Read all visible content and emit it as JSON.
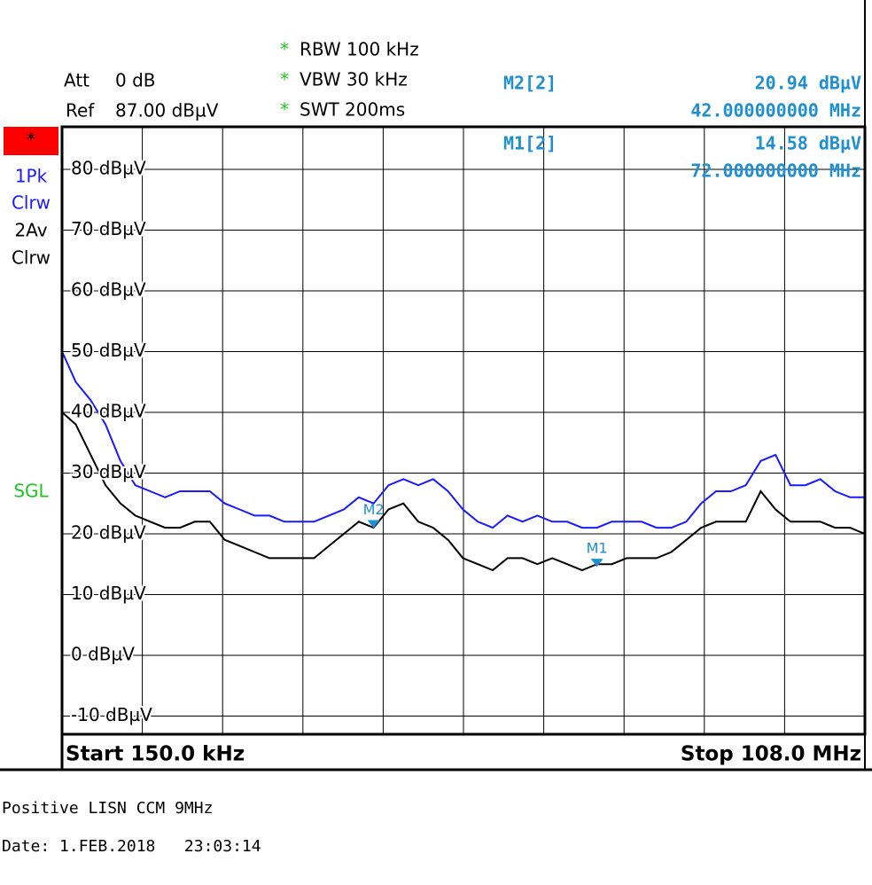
{
  "chart_data": {
    "type": "line",
    "header": {
      "att_label": "Att",
      "att": "0 dB",
      "ref_label": "Ref",
      "ref": "87.00 dBµV",
      "settings": [
        {
          "star": "*",
          "text": "RBW 100 kHz"
        },
        {
          "star": "*",
          "text": "VBW 30 kHz"
        },
        {
          "star": "*",
          "text": "SWT 200ms"
        }
      ]
    },
    "side_labels": {
      "flag": "*",
      "trace1": [
        "1Pk",
        "Clrw"
      ],
      "trace2": [
        "2Av",
        "Clrw"
      ],
      "mode": "SGL"
    },
    "markers": [
      {
        "name": "M2[2]",
        "label": "M2",
        "level": "20.94 dBµV",
        "freq": "42.000000000 MHz",
        "x": 42,
        "y": 20.94,
        "color": "#1e8fd0"
      },
      {
        "name": "M1[2]",
        "label": "M1",
        "level": "14.58 dBµV",
        "freq": "72.000000000 MHz",
        "x": 72,
        "y": 14.58,
        "color": "#1e8fd0"
      }
    ],
    "start_label": "Start 150.0 kHz",
    "stop_label": "Stop 108.0 MHz",
    "xlim": [
      0.15,
      108
    ],
    "ylim": [
      -13,
      87
    ],
    "yticks": [
      {
        "value": 80,
        "label": "80 dBµV"
      },
      {
        "value": 70,
        "label": "70 dBµV"
      },
      {
        "value": 60,
        "label": "60 dBµV"
      },
      {
        "value": 50,
        "label": "50 dBµV"
      },
      {
        "value": 40,
        "label": "40 dBµV"
      },
      {
        "value": 30,
        "label": "30 dBµV"
      },
      {
        "value": 20,
        "label": "20 dBµV"
      },
      {
        "value": 10,
        "label": "10 dBµV"
      },
      {
        "value": 0,
        "label": "0 dBµV"
      },
      {
        "value": -10,
        "label": "-10 dBµV"
      }
    ],
    "grid": true,
    "x": [
      0.15,
      2,
      4,
      6,
      8,
      10,
      12,
      14,
      16,
      18,
      20,
      22,
      24,
      26,
      28,
      30,
      32,
      34,
      36,
      38,
      40,
      42,
      44,
      46,
      48,
      50,
      52,
      54,
      56,
      58,
      60,
      62,
      64,
      66,
      68,
      70,
      72,
      74,
      76,
      78,
      80,
      82,
      84,
      86,
      88,
      90,
      92,
      94,
      96,
      98,
      100,
      102,
      104,
      106,
      108
    ],
    "series": [
      {
        "name": "1Pk Clrw",
        "color": "#1a1aff",
        "values": [
          50,
          45,
          42,
          38,
          32,
          28,
          27,
          26,
          27,
          27,
          27,
          25,
          24,
          23,
          23,
          22,
          22,
          22,
          23,
          24,
          26,
          25,
          28,
          29,
          28,
          29,
          27,
          24,
          22,
          21,
          23,
          22,
          23,
          22,
          22,
          21,
          21,
          22,
          22,
          22,
          21,
          21,
          22,
          25,
          27,
          27,
          28,
          32,
          33,
          28,
          28,
          29,
          27,
          26,
          26
        ]
      },
      {
        "name": "2Av Clrw",
        "color": "#000000",
        "values": [
          40,
          38,
          33,
          28,
          25,
          23,
          22,
          21,
          21,
          22,
          22,
          19,
          18,
          17,
          16,
          16,
          16,
          16,
          18,
          20,
          22,
          21,
          24,
          25,
          22,
          21,
          19,
          16,
          15,
          14,
          16,
          16,
          15,
          16,
          15,
          14,
          15,
          15,
          16,
          16,
          16,
          17,
          19,
          21,
          22,
          22,
          22,
          27,
          24,
          22,
          22,
          22,
          21,
          21,
          20
        ]
      }
    ],
    "footer": [
      "Positive LISN CCM 9MHz",
      "Date: 1.FEB.2018   23:03:14"
    ]
  }
}
